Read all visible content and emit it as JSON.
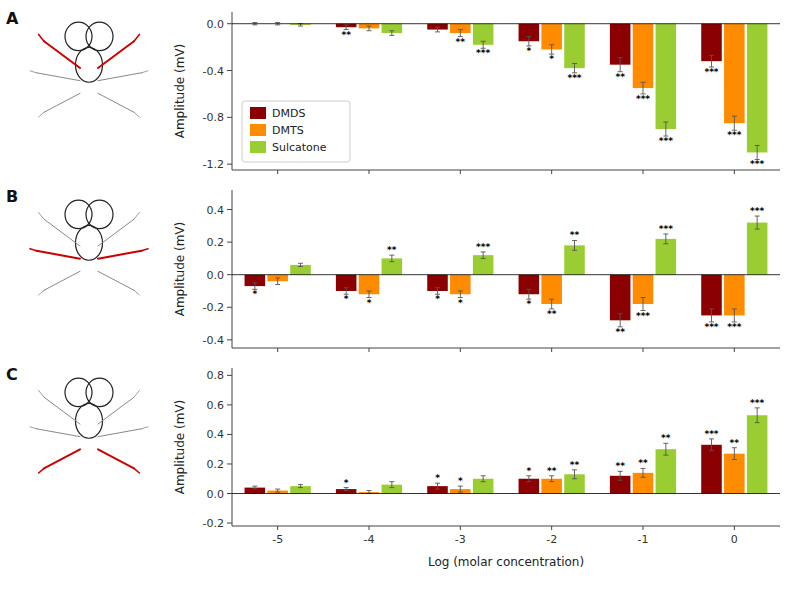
{
  "chart_data": [
    {
      "type": "bar",
      "title": "A",
      "y_label": "Amplitude (mV)",
      "categories": [
        "-5",
        "-4",
        "-3",
        "-2",
        "-1",
        "0"
      ],
      "ylim": [
        -1.25,
        0.1
      ],
      "yticks": [
        {
          "value": 0,
          "label": "0.0"
        },
        -0.4,
        -0.8,
        -1.2
      ],
      "tick_labels": "y",
      "legend": "lower left",
      "series": [
        {
          "name": "DMDS",
          "color": "#8B0000",
          "values": [
            0.0,
            -0.03,
            -0.05,
            -0.15,
            -0.35,
            -0.32
          ],
          "errors": [
            0.01,
            0.02,
            0.02,
            0.04,
            0.06,
            0.05
          ],
          "annotations": [
            null,
            "**",
            null,
            "*",
            "**",
            "***"
          ]
        },
        {
          "name": "DMTS",
          "color": "#FF8C00",
          "values": [
            0.0,
            -0.04,
            -0.08,
            -0.22,
            -0.55,
            -0.85
          ],
          "errors": [
            0.01,
            0.02,
            0.03,
            0.04,
            0.05,
            0.06
          ],
          "annotations": [
            null,
            null,
            "**",
            "*",
            "***",
            "***"
          ]
        },
        {
          "name": "Sulcatone",
          "color": "#9ACD32",
          "values": [
            -0.01,
            -0.08,
            -0.18,
            -0.38,
            -0.9,
            -1.1
          ],
          "errors": [
            0.01,
            0.02,
            0.03,
            0.04,
            0.06,
            0.06
          ],
          "annotations": [
            null,
            null,
            "***",
            "***",
            "***",
            "***"
          ]
        }
      ]
    },
    {
      "type": "bar",
      "title": "B",
      "y_label": "Amplitude (mV)",
      "categories": [
        "-5",
        "-4",
        "-3",
        "-2",
        "-1",
        "0"
      ],
      "ylim": [
        -0.45,
        0.52
      ],
      "yticks": [
        -0.4,
        -0.2,
        {
          "value": 0,
          "label": "0.0"
        },
        0.2,
        0.4
      ],
      "tick_labels": "y",
      "series": [
        {
          "color": "#8B0000",
          "values": [
            -0.07,
            -0.1,
            -0.1,
            -0.12,
            -0.28,
            -0.25
          ],
          "errors": [
            0.02,
            0.02,
            0.02,
            0.03,
            0.04,
            0.04
          ],
          "annotations": [
            "*",
            "*",
            "*",
            "*",
            "**",
            "***"
          ]
        },
        {
          "color": "#FF8C00",
          "values": [
            -0.04,
            -0.12,
            -0.12,
            -0.18,
            -0.18,
            -0.25
          ],
          "errors": [
            0.02,
            0.02,
            0.02,
            0.03,
            0.04,
            0.04
          ],
          "annotations": [
            null,
            "*",
            "*",
            "**",
            "***",
            "***"
          ]
        },
        {
          "color": "#9ACD32",
          "values": [
            0.06,
            0.1,
            0.12,
            0.18,
            0.22,
            0.32
          ],
          "errors": [
            0.01,
            0.02,
            0.02,
            0.03,
            0.03,
            0.04
          ],
          "annotations": [
            null,
            "**",
            "***",
            "**",
            "***",
            "***"
          ]
        }
      ]
    },
    {
      "type": "bar",
      "title": "C",
      "y_label": "Amplitude (mV)",
      "x_label": "Log (molar concentration)",
      "categories": [
        "-5",
        "-4",
        "-3",
        "-2",
        "-1",
        "0"
      ],
      "ylim": [
        -0.22,
        0.85
      ],
      "yticks": [
        -0.2,
        {
          "value": 0,
          "label": "0.0"
        },
        0.2,
        0.4,
        0.6,
        0.8
      ],
      "series": [
        {
          "color": "#8B0000",
          "values": [
            0.04,
            0.03,
            0.05,
            0.1,
            0.12,
            0.33
          ],
          "errors": [
            0.01,
            0.01,
            0.02,
            0.02,
            0.03,
            0.04
          ],
          "annotations": [
            null,
            "*",
            "*",
            "*",
            "**",
            "***"
          ]
        },
        {
          "color": "#FF8C00",
          "values": [
            0.02,
            0.01,
            0.03,
            0.1,
            0.14,
            0.27
          ],
          "errors": [
            0.01,
            0.01,
            0.02,
            0.02,
            0.03,
            0.04
          ],
          "annotations": [
            null,
            null,
            "*",
            "**",
            "**",
            "**"
          ]
        },
        {
          "color": "#9ACD32",
          "values": [
            0.05,
            0.06,
            0.1,
            0.13,
            0.3,
            0.53
          ],
          "errors": [
            0.01,
            0.02,
            0.02,
            0.03,
            0.04,
            0.05
          ],
          "annotations": [
            null,
            null,
            null,
            "**",
            "**",
            "***"
          ]
        }
      ]
    }
  ]
}
